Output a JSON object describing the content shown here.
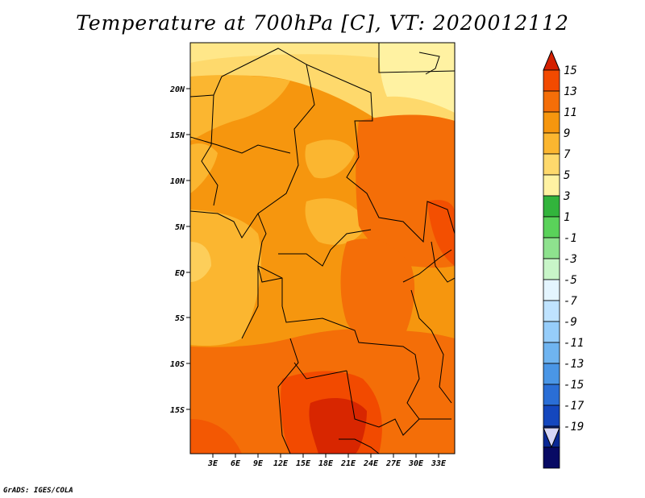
{
  "title": "Temperature at 700hPa [C], VT: 2020012112",
  "credit": "GrADS: IGES/COLA",
  "lat_labels": [
    "20N",
    "15N",
    "10N",
    "5N",
    "EQ",
    "5S",
    "10S",
    "15S"
  ],
  "lon_labels": [
    "3E",
    "6E",
    "9E",
    "12E",
    "15E",
    "18E",
    "21E",
    "24E",
    "27E",
    "30E",
    "33E"
  ],
  "colorbar": {
    "labels": [
      "15",
      "13",
      "11",
      "9",
      "7",
      "5",
      "3",
      "1",
      "-1",
      "-3",
      "-5",
      "-7",
      "-9",
      "-11",
      "-13",
      "-15",
      "-17",
      "-19"
    ],
    "colors": [
      "#d42000",
      "#f24a00",
      "#f46e08",
      "#f6960e",
      "#fbb630",
      "#fed96c",
      "#fff2a2",
      "#32b43c",
      "#5ad25a",
      "#8ee28e",
      "#c8f5c8",
      "#e4f5ff",
      "#bfe3ff",
      "#96cdfa",
      "#6fb4f0",
      "#4a96e6",
      "#2a6ed6",
      "#1447be",
      "#0a2896",
      "#080a64",
      "#d6d6f6"
    ]
  },
  "colors": {
    "c9": "#f6960e",
    "c7": "#fbb630",
    "c5": "#fed96c",
    "c3": "#fff2a2",
    "c11": "#f46e08",
    "c13": "#f24a00",
    "c15": "#d42000"
  }
}
